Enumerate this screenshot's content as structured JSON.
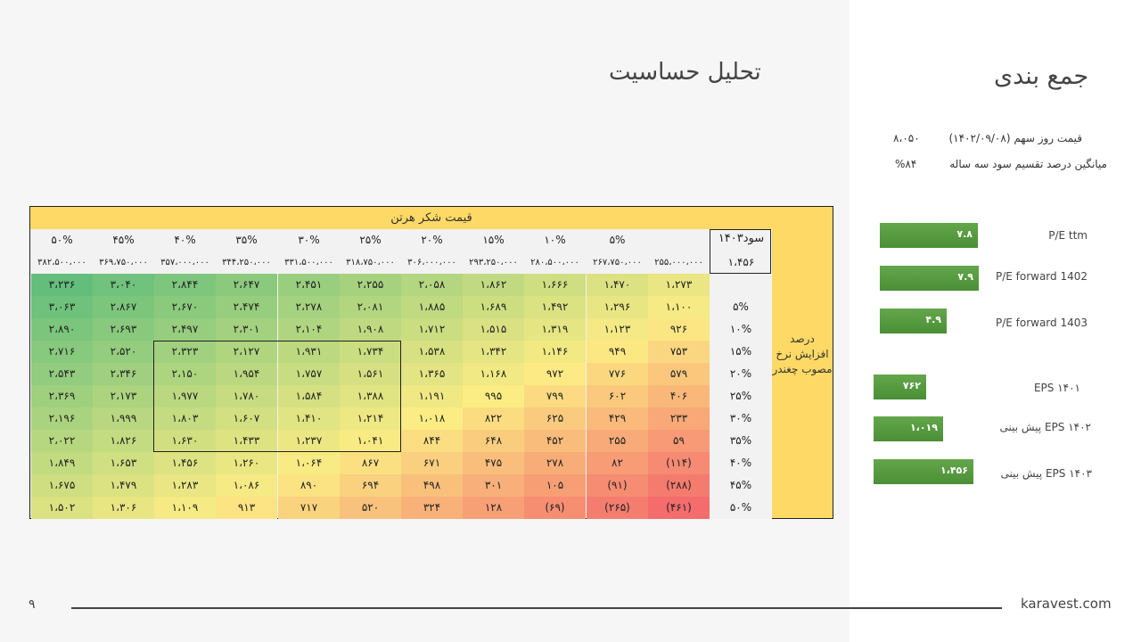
{
  "main_title": "تحلیل حساسیت",
  "side_title": "جمع بندی",
  "stats": [
    {
      "label": "قیمت روز سهم (۱۴۰۲/۰۹/۰۸)",
      "value": "۸،۰۵۰"
    },
    {
      "label": "میانگین درصد تقسیم سود سه ساله",
      "value": "%۸۴"
    }
  ],
  "bars": [
    {
      "label": "P/E ttm",
      "value": "۷.۸",
      "fraction": 0.75
    },
    {
      "label": "P/E forward 1402",
      "value": "۷.۹",
      "fraction": 0.76
    },
    {
      "label": "P/E forward 1403",
      "value": "۴.۹",
      "fraction": 0.47
    },
    {
      "label": "EPS ۱۴۰۱",
      "value": "۷۶۲",
      "fraction": 0.53
    },
    {
      "label": "پیش بینی EPS ۱۴۰۲",
      "value": "۱،۰۱۹",
      "fraction": 0.7
    },
    {
      "label": "پیش بینی EPS ۱۴۰۳",
      "value": "۱،۴۵۶",
      "fraction": 1.0
    }
  ],
  "table": {
    "header": "قیمت شکر هرتن",
    "eps_label": "سود۱۴۰۳",
    "eps_value": "۱،۴۵۶",
    "side_label": "درصد افزایش نرخ مصوب چغندر",
    "columns": [
      "",
      "۵%",
      "۱۰%",
      "۱۵%",
      "۲۰%",
      "۲۵%",
      "۳۰%",
      "۳۵%",
      "۴۰%",
      "۴۵%",
      "۵۰%"
    ],
    "prices": [
      "۲۵۵،۰۰۰،۰۰۰",
      "۲۶۷،۷۵۰،۰۰۰",
      "۲۸۰،۵۰۰،۰۰۰",
      "۲۹۳،۲۵۰،۰۰۰",
      "۳۰۶،۰۰۰،۰۰۰",
      "۳۱۸،۷۵۰،۰۰۰",
      "۳۳۱،۵۰۰،۰۰۰",
      "۳۴۴،۲۵۰،۰۰۰",
      "۳۵۷،۰۰۰،۰۰۰",
      "۳۶۹،۷۵۰،۰۰۰",
      "۳۸۲،۵۰۰،۰۰۰"
    ],
    "rows": [
      {
        "label": "",
        "values": [
          "۱،۲۷۳",
          "۱،۴۷۰",
          "۱،۶۶۶",
          "۱،۸۶۲",
          "۲،۰۵۸",
          "۲،۲۵۵",
          "۲،۴۵۱",
          "۲،۶۴۷",
          "۲،۸۴۴",
          "۳،۰۴۰",
          "۳،۲۳۶"
        ],
        "nums": [
          1273,
          1470,
          1666,
          1862,
          2058,
          2255,
          2451,
          2647,
          2844,
          3040,
          3236
        ]
      },
      {
        "label": "۵%",
        "values": [
          "۱،۱۰۰",
          "۱،۲۹۶",
          "۱،۴۹۲",
          "۱،۶۸۹",
          "۱،۸۸۵",
          "۲،۰۸۱",
          "۲،۲۷۸",
          "۲،۴۷۴",
          "۲،۶۷۰",
          "۲،۸۶۷",
          "۳،۰۶۳"
        ],
        "nums": [
          1100,
          1296,
          1492,
          1689,
          1885,
          2081,
          2278,
          2474,
          2670,
          2867,
          3063
        ]
      },
      {
        "label": "۱۰%",
        "values": [
          "۹۲۶",
          "۱،۱۲۳",
          "۱،۳۱۹",
          "۱،۵۱۵",
          "۱،۷۱۲",
          "۱،۹۰۸",
          "۲،۱۰۴",
          "۲،۳۰۱",
          "۲،۴۹۷",
          "۲،۶۹۳",
          "۲،۸۹۰"
        ],
        "nums": [
          926,
          1123,
          1319,
          1515,
          1712,
          1908,
          2104,
          2301,
          2497,
          2693,
          2890
        ]
      },
      {
        "label": "۱۵%",
        "values": [
          "۷۵۳",
          "۹۴۹",
          "۱،۱۴۶",
          "۱،۳۴۲",
          "۱،۵۳۸",
          "۱،۷۳۴",
          "۱،۹۳۱",
          "۲،۱۲۷",
          "۲،۳۲۳",
          "۲،۵۲۰",
          "۲،۷۱۶"
        ],
        "nums": [
          753,
          949,
          1146,
          1342,
          1538,
          1734,
          1931,
          2127,
          2323,
          2520,
          2716
        ]
      },
      {
        "label": "۲۰%",
        "values": [
          "۵۷۹",
          "۷۷۶",
          "۹۷۲",
          "۱،۱۶۸",
          "۱،۳۶۵",
          "۱،۵۶۱",
          "۱،۷۵۷",
          "۱،۹۵۴",
          "۲،۱۵۰",
          "۲،۳۴۶",
          "۲،۵۴۳"
        ],
        "nums": [
          579,
          776,
          972,
          1168,
          1365,
          1561,
          1757,
          1954,
          2150,
          2346,
          2543
        ]
      },
      {
        "label": "۲۵%",
        "values": [
          "۴۰۶",
          "۶۰۲",
          "۷۹۹",
          "۹۹۵",
          "۱،۱۹۱",
          "۱،۳۸۸",
          "۱،۵۸۴",
          "۱،۷۸۰",
          "۱،۹۷۷",
          "۲،۱۷۳",
          "۲،۳۶۹"
        ],
        "nums": [
          406,
          602,
          799,
          995,
          1191,
          1388,
          1584,
          1780,
          1977,
          2173,
          2369
        ]
      },
      {
        "label": "۳۰%",
        "values": [
          "۲۳۳",
          "۴۲۹",
          "۶۲۵",
          "۸۲۲",
          "۱،۰۱۸",
          "۱،۲۱۴",
          "۱،۴۱۰",
          "۱،۶۰۷",
          "۱،۸۰۳",
          "۱،۹۹۹",
          "۲،۱۹۶"
        ],
        "nums": [
          233,
          429,
          625,
          822,
          1018,
          1214,
          1410,
          1607,
          1803,
          1999,
          2196
        ]
      },
      {
        "label": "۳۵%",
        "values": [
          "۵۹",
          "۲۵۵",
          "۴۵۲",
          "۶۴۸",
          "۸۴۴",
          "۱،۰۴۱",
          "۱،۲۳۷",
          "۱،۴۳۳",
          "۱،۶۳۰",
          "۱،۸۲۶",
          "۲،۰۲۲"
        ],
        "nums": [
          59,
          255,
          452,
          648,
          844,
          1041,
          1237,
          1433,
          1630,
          1826,
          2022
        ]
      },
      {
        "label": "۴۰%",
        "values": [
          "(۱۱۴)",
          "۸۲",
          "۲۷۸",
          "۴۷۵",
          "۶۷۱",
          "۸۶۷",
          "۱،۰۶۴",
          "۱،۲۶۰",
          "۱،۴۵۶",
          "۱،۶۵۳",
          "۱،۸۴۹"
        ],
        "nums": [
          -114,
          82,
          278,
          475,
          671,
          867,
          1064,
          1260,
          1456,
          1653,
          1849
        ]
      },
      {
        "label": "۴۵%",
        "values": [
          "(۲۸۸)",
          "(۹۱)",
          "۱۰۵",
          "۳۰۱",
          "۴۹۸",
          "۶۹۴",
          "۸۹۰",
          "۱،۰۸۶",
          "۱،۲۸۳",
          "۱،۴۷۹",
          "۱،۶۷۵"
        ],
        "nums": [
          -288,
          -91,
          105,
          301,
          498,
          694,
          890,
          1086,
          1283,
          1479,
          1675
        ]
      },
      {
        "label": "۵۰%",
        "values": [
          "(۴۶۱)",
          "(۲۶۵)",
          "(۶۹)",
          "۱۲۸",
          "۳۲۴",
          "۵۲۰",
          "۷۱۷",
          "۹۱۳",
          "۱،۱۰۹",
          "۱،۳۰۶",
          "۱،۵۰۲"
        ],
        "nums": [
          -461,
          -265,
          -69,
          128,
          324,
          520,
          717,
          913,
          1109,
          1306,
          1502
        ]
      }
    ]
  },
  "footer": {
    "page_number": "۹",
    "site": "karavest.com"
  }
}
